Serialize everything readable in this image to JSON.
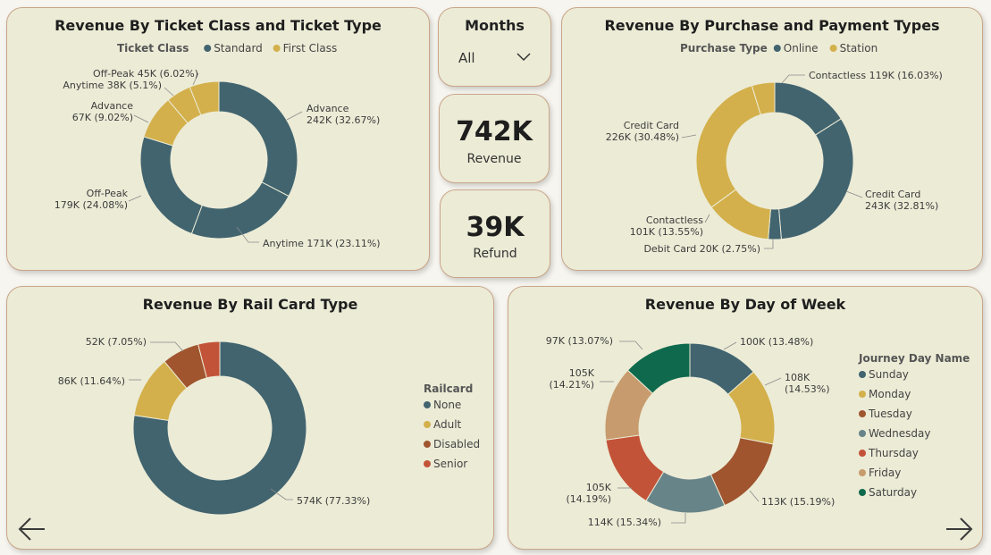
{
  "colors": {
    "teal": "#41646f",
    "gold": "#d3b04b",
    "rust": "#a0552f",
    "slate": "#678489",
    "red": "#c35338",
    "tan": "#c79b6d",
    "green": "#0f6a4d",
    "card_bg": "#ecebd6"
  },
  "months_filter": {
    "title": "Months",
    "selected": "All"
  },
  "kpis": {
    "revenue": {
      "value": "742K",
      "label": "Revenue"
    },
    "refund": {
      "value": "39K",
      "label": "Refund"
    }
  },
  "chart_data": [
    {
      "type": "pie",
      "title": "Revenue By Ticket Class and Ticket Type",
      "legend_title": "Ticket Class",
      "legend": [
        "Standard",
        "First Class"
      ],
      "slices": [
        {
          "name": "Advance",
          "class": "Standard",
          "value": 242,
          "label_lines": [
            "Advance",
            "242K (32.67%)"
          ],
          "color": "#41646f"
        },
        {
          "name": "Anytime",
          "class": "Standard",
          "value": 171,
          "label_lines": [
            "Anytime 171K (23.11%)"
          ],
          "color": "#41646f"
        },
        {
          "name": "Off-Peak",
          "class": "Standard",
          "value": 179,
          "label_lines": [
            "Off-Peak",
            "179K (24.08%)"
          ],
          "color": "#41646f"
        },
        {
          "name": "Advance",
          "class": "First Class",
          "value": 67,
          "label_lines": [
            "Advance",
            "67K (9.02%)"
          ],
          "color": "#d3b04b"
        },
        {
          "name": "Anytime",
          "class": "First Class",
          "value": 38,
          "label_lines": [
            "Anytime 38K (5.1%)"
          ],
          "color": "#d3b04b"
        },
        {
          "name": "Off-Peak",
          "class": "First Class",
          "value": 45,
          "label_lines": [
            "Off-Peak 45K (6.02%)"
          ],
          "color": "#d3b04b"
        }
      ]
    },
    {
      "type": "pie",
      "title": "Revenue By Purchase and Payment Types",
      "legend_title": "Purchase Type",
      "legend": [
        "Online",
        "Station"
      ],
      "slices": [
        {
          "name": "Contactless",
          "class": "Online",
          "value": 119,
          "label_lines": [
            "Contactless 119K (16.03%)"
          ],
          "color": "#41646f"
        },
        {
          "name": "Credit Card",
          "class": "Online",
          "value": 243,
          "label_lines": [
            "Credit Card",
            "243K (32.81%)"
          ],
          "color": "#41646f"
        },
        {
          "name": "Debit Card",
          "class": "Online",
          "value": 20,
          "label_lines": [
            "Debit Card 20K (2.75%)"
          ],
          "color": "#41646f"
        },
        {
          "name": "Contactless",
          "class": "Station",
          "value": 101,
          "label_lines": [
            "Contactless",
            "101K (13.55%)"
          ],
          "color": "#d3b04b"
        },
        {
          "name": "Credit Card",
          "class": "Station",
          "value": 226,
          "label_lines": [
            "Credit Card",
            "226K (30.48%)"
          ],
          "color": "#d3b04b"
        },
        {
          "name": "Debit Card",
          "class": "Station",
          "value": 35,
          "label_lines": [],
          "color": "#d3b04b"
        }
      ]
    },
    {
      "type": "pie",
      "title": "Revenue By Rail Card Type",
      "legend_title": "Railcard",
      "legend": [
        "None",
        "Adult",
        "Disabled",
        "Senior"
      ],
      "slices": [
        {
          "name": "None",
          "value": 574,
          "label_lines": [
            "574K (77.33%)"
          ],
          "color": "#41646f"
        },
        {
          "name": "Adult",
          "value": 86,
          "label_lines": [
            "86K (11.64%)"
          ],
          "color": "#d3b04b"
        },
        {
          "name": "Disabled",
          "value": 52,
          "label_lines": [
            "52K (7.05%)"
          ],
          "color": "#a0552f"
        },
        {
          "name": "Senior",
          "value": 30,
          "label_lines": [],
          "color": "#c35338"
        }
      ]
    },
    {
      "type": "pie",
      "title": "Revenue By Day of Week",
      "legend_title": "Journey Day Name",
      "legend": [
        "Sunday",
        "Monday",
        "Tuesday",
        "Wednesday",
        "Thursday",
        "Friday",
        "Saturday"
      ],
      "slices": [
        {
          "name": "Sunday",
          "value": 100,
          "label_lines": [
            "100K (13.48%)"
          ],
          "color": "#41646f"
        },
        {
          "name": "Monday",
          "value": 108,
          "label_lines": [
            "108K",
            "(14.53%)"
          ],
          "color": "#d3b04b"
        },
        {
          "name": "Tuesday",
          "value": 113,
          "label_lines": [
            "113K (15.19%)"
          ],
          "color": "#a0552f"
        },
        {
          "name": "Wednesday",
          "value": 114,
          "label_lines": [
            "114K (15.34%)"
          ],
          "color": "#678489"
        },
        {
          "name": "Thursday",
          "value": 105,
          "label_lines": [
            "105K",
            "(14.19%)"
          ],
          "color": "#c35338"
        },
        {
          "name": "Friday",
          "value": 105,
          "label_lines": [
            "105K",
            "(14.21%)"
          ],
          "color": "#c79b6d"
        },
        {
          "name": "Saturday",
          "value": 97,
          "label_lines": [
            "97K (13.07%)"
          ],
          "color": "#0f6a4d"
        }
      ]
    }
  ],
  "nav": {
    "back": "back-arrow-icon",
    "forward": "forward-arrow-icon"
  }
}
